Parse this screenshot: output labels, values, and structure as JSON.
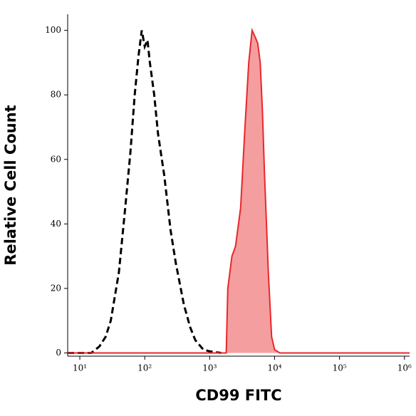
{
  "chart_data": {
    "type": "histogram-line",
    "x_label": "CD99 FITC",
    "y_label": "Relative Cell Count",
    "xscale": "log",
    "xlim": [
      6.5,
      1200000
    ],
    "ylim": [
      -1,
      105
    ],
    "xticks": [
      {
        "value": 10,
        "label": "10¹"
      },
      {
        "value": 100,
        "label": "10²"
      },
      {
        "value": 1000,
        "label": "10³"
      },
      {
        "value": 10000,
        "label": "10⁴"
      },
      {
        "value": 100000,
        "label": "10⁵"
      },
      {
        "value": 1000000,
        "label": "10⁶"
      }
    ],
    "yticks": [
      0,
      20,
      40,
      60,
      80,
      100
    ],
    "series": [
      {
        "color": "#000000",
        "style": "dashed",
        "fill": false,
        "x": [
          6.5,
          15,
          20,
          25,
          30,
          40,
          50,
          60,
          70,
          80,
          90,
          100,
          110,
          120,
          140,
          160,
          200,
          250,
          300,
          400,
          500,
          600,
          800,
          1000,
          1500
        ],
        "values": [
          0,
          0,
          2,
          5,
          10,
          25,
          45,
          62,
          80,
          92,
          100,
          95,
          97,
          90,
          80,
          68,
          55,
          38,
          28,
          15,
          8,
          4,
          1,
          0.5,
          0
        ]
      },
      {
        "color": "#e8272b",
        "style": "solid",
        "fill": true,
        "x": [
          6.5,
          1800,
          1900,
          2200,
          2500,
          3000,
          3500,
          4000,
          4500,
          5000,
          5500,
          6000,
          6500,
          7000,
          7500,
          8000,
          9000,
          10000,
          12000,
          1200000
        ],
        "values": [
          0,
          0,
          20,
          30,
          33,
          45,
          70,
          90,
          100,
          98,
          96,
          90,
          75,
          55,
          40,
          25,
          5,
          1,
          0,
          0
        ]
      }
    ]
  }
}
